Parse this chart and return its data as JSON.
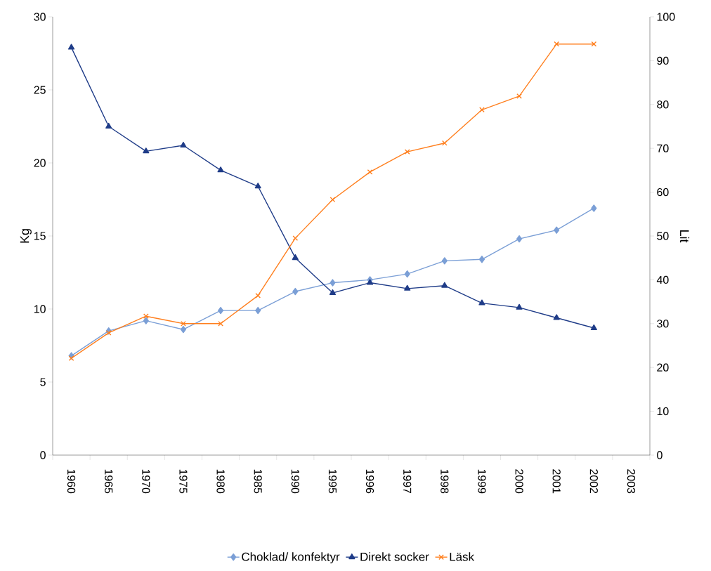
{
  "chart_data": {
    "type": "line",
    "ylabel": "Kg",
    "y2label": "Lit",
    "categories": [
      "1960",
      "1965",
      "1970",
      "1975",
      "1980",
      "1985",
      "1990",
      "1995",
      "1996",
      "1997",
      "1998",
      "1999",
      "2000",
      "2001",
      "2002",
      "2003"
    ],
    "series": [
      {
        "name": "Choklad/ konfektyr",
        "color": "#7b9fd6",
        "marker": "diamond",
        "values": [
          6.8,
          8.5,
          9.2,
          8.6,
          9.9,
          9.9,
          11.2,
          11.8,
          12.0,
          12.4,
          13.3,
          13.4,
          14.8,
          15.4,
          16.9,
          null
        ]
      },
      {
        "name": "Direkt socker",
        "color": "#1f3c88",
        "marker": "triangle",
        "values": [
          27.9,
          22.5,
          20.8,
          21.2,
          19.5,
          18.4,
          13.5,
          11.1,
          11.8,
          11.4,
          11.6,
          10.4,
          10.1,
          9.4,
          8.7,
          null
        ]
      },
      {
        "name": "Läsk",
        "color": "#ff7f1e",
        "marker": "cross",
        "axis": "y2",
        "values": [
          22.1,
          27.9,
          31.7,
          30.0,
          30.0,
          36.4,
          49.5,
          58.3,
          64.6,
          69.2,
          71.2,
          78.8,
          81.9,
          93.8,
          93.8,
          null
        ]
      }
    ],
    "ylim": [
      0,
      30
    ],
    "yticks": [
      0,
      5,
      10,
      15,
      20,
      25,
      30
    ],
    "y2lim": [
      0,
      100
    ],
    "y2ticks": [
      0,
      10,
      20,
      30,
      40,
      50,
      60,
      70,
      80,
      90,
      100
    ],
    "line_style": "solid",
    "legend": "bottom",
    "grid": false
  }
}
